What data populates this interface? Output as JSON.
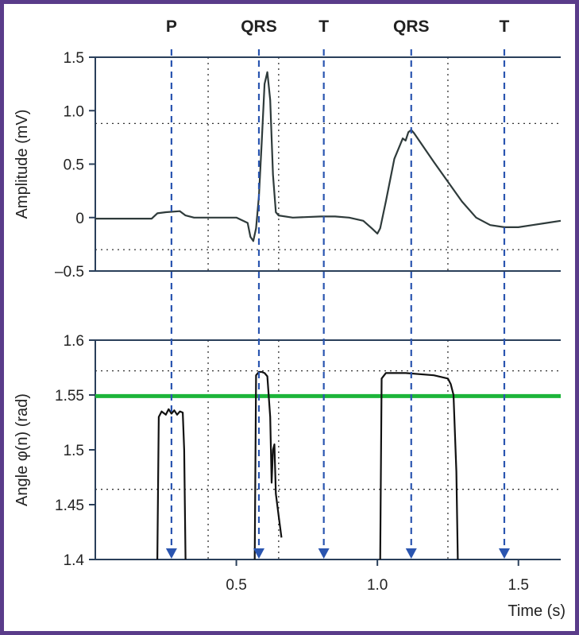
{
  "chart_data": [
    {
      "type": "line",
      "ylabel": "Amplitude (mV)",
      "ylim": [
        -0.5,
        1.5
      ],
      "yticks": [
        "1.5",
        "1.0",
        "0.5",
        "0",
        "–0.5"
      ],
      "ytick_values": [
        1.5,
        1.0,
        0.5,
        0,
        -0.5
      ],
      "xlim": [
        0.0,
        1.65
      ],
      "dotted_hlines": [
        0.88,
        -0.3
      ],
      "dotted_vlines": [
        0.4,
        0.65,
        1.25
      ],
      "wave_labels": [
        {
          "text": "P",
          "x": 0.27
        },
        {
          "text": "QRS",
          "x": 0.58
        },
        {
          "text": "T",
          "x": 0.81
        },
        {
          "text": "QRS",
          "x": 1.12
        },
        {
          "text": "T",
          "x": 1.45
        }
      ],
      "series": [
        {
          "color": "#2f3b3b",
          "x": [
            0.0,
            0.1,
            0.2,
            0.22,
            0.25,
            0.3,
            0.32,
            0.35,
            0.4,
            0.5,
            0.54,
            0.55,
            0.56,
            0.57,
            0.58,
            0.59,
            0.6,
            0.61,
            0.62,
            0.63,
            0.64,
            0.65,
            0.7,
            0.8,
            0.85,
            0.9,
            0.95,
            0.98,
            1.0,
            1.01,
            1.03,
            1.06,
            1.09,
            1.1,
            1.11,
            1.12,
            1.13,
            1.2,
            1.3,
            1.35,
            1.4,
            1.45,
            1.5,
            1.55,
            1.6,
            1.65
          ],
          "y": [
            -0.01,
            -0.01,
            -0.01,
            0.04,
            0.05,
            0.06,
            0.02,
            0.0,
            0.0,
            0.0,
            -0.05,
            -0.18,
            -0.22,
            -0.1,
            0.2,
            0.7,
            1.25,
            1.36,
            1.1,
            0.4,
            0.05,
            0.02,
            0.0,
            0.01,
            0.01,
            0.0,
            -0.03,
            -0.1,
            -0.15,
            -0.1,
            0.15,
            0.55,
            0.74,
            0.72,
            0.8,
            0.82,
            0.79,
            0.52,
            0.15,
            0.0,
            -0.07,
            -0.09,
            -0.09,
            -0.07,
            -0.05,
            -0.03
          ]
        }
      ]
    },
    {
      "type": "line",
      "ylabel": "Angle φ(n) (rad)",
      "xlabel": "Time (s)",
      "ylim": [
        1.4,
        1.6
      ],
      "yticks": [
        "1.6",
        "1.55",
        "1.5",
        "1.45",
        "1.4"
      ],
      "ytick_values": [
        1.6,
        1.55,
        1.5,
        1.45,
        1.4
      ],
      "xlim": [
        0.0,
        1.65
      ],
      "xticks": [
        "0.5",
        "1.0",
        "1.5"
      ],
      "xtick_values": [
        0.5,
        1.0,
        1.5
      ],
      "threshold": {
        "value": 1.549,
        "color": "#1db53a"
      },
      "dotted_hlines": [
        1.572,
        1.464
      ],
      "dotted_vlines": [
        0.4,
        0.65,
        1.25
      ],
      "series": [
        {
          "color": "#111111",
          "segments": [
            {
              "x": [
                0.22,
                0.225,
                0.235,
                0.25,
                0.26,
                0.27,
                0.28,
                0.29,
                0.3,
                0.31,
                0.315,
                0.32
              ],
              "y": [
                1.4,
                1.53,
                1.535,
                1.532,
                1.537,
                1.533,
                1.536,
                1.532,
                1.535,
                1.534,
                1.5,
                1.4
              ]
            },
            {
              "x": [
                0.565,
                0.57,
                0.58,
                0.59,
                0.6,
                0.61,
                0.62,
                0.625,
                0.63,
                0.635,
                0.64,
                0.65,
                0.66
              ],
              "y": [
                1.4,
                1.568,
                1.571,
                1.571,
                1.57,
                1.567,
                1.53,
                1.47,
                1.5,
                1.505,
                1.46,
                1.44,
                1.42
              ]
            },
            {
              "x": [
                1.01,
                1.015,
                1.03,
                1.1,
                1.2,
                1.25,
                1.26,
                1.27,
                1.28,
                1.285
              ],
              "y": [
                1.4,
                1.565,
                1.57,
                1.57,
                1.568,
                1.565,
                1.56,
                1.55,
                1.48,
                1.4
              ]
            }
          ]
        }
      ]
    }
  ],
  "arrows": [
    {
      "x": 0.27,
      "color": "#2a55b0"
    },
    {
      "x": 0.58,
      "color": "#2a55b0"
    },
    {
      "x": 0.81,
      "color": "#2a55b0"
    },
    {
      "x": 1.12,
      "color": "#2a55b0"
    },
    {
      "x": 1.45,
      "color": "#2a55b0"
    }
  ],
  "frame_color": "#5a3c8a"
}
